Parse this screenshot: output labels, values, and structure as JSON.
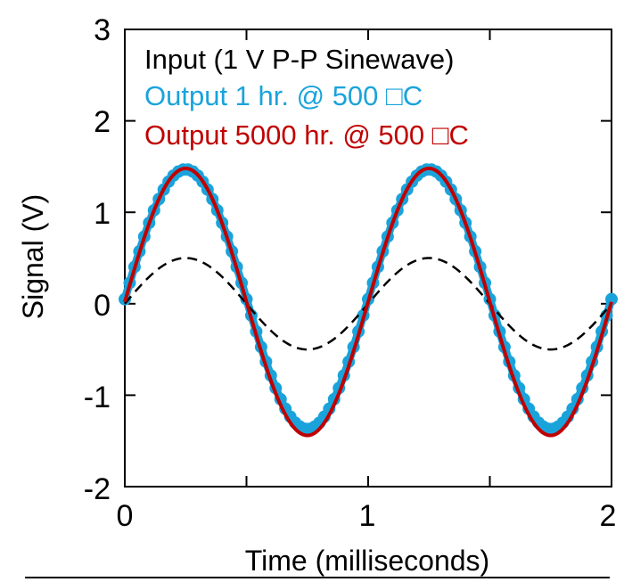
{
  "chart_data": {
    "type": "line",
    "title": "",
    "xlabel": "Time (milliseconds)",
    "ylabel": "Signal (V)",
    "xlim": [
      0,
      2
    ],
    "ylim": [
      -2,
      3
    ],
    "x_ticks": [
      "0",
      "1",
      "2"
    ],
    "y_ticks": [
      "-2",
      "-1",
      "0",
      "1",
      "2",
      "3"
    ],
    "grid": false,
    "legend_placement": "top-left",
    "series": [
      {
        "name": "Input (1 V P-P Sinewave)",
        "color": "#000000",
        "style": "dashed",
        "frequency_khz": 1,
        "amplitude_v": 0.5,
        "offset_v": 0.0,
        "x": [
          0,
          0.25,
          0.5,
          0.75,
          1.0,
          1.25,
          1.5,
          1.75,
          2.0
        ],
        "y": [
          0.0,
          0.5,
          0.0,
          -0.5,
          0.0,
          0.5,
          0.0,
          -0.5,
          0.0
        ]
      },
      {
        "name": "Output 1 hr. @ 500 □C",
        "color": "#1aa3db",
        "style": "markers",
        "frequency_khz": 1,
        "amplitude_v": 1.42,
        "offset_v": 0.05,
        "x": [
          0,
          0.25,
          0.5,
          0.75,
          1.0,
          1.25,
          1.5,
          1.75,
          2.0
        ],
        "y": [
          0.1,
          1.47,
          0.05,
          -1.37,
          0.05,
          1.47,
          0.05,
          -1.37,
          0.05
        ]
      },
      {
        "name": "Output 5000 hr. @ 500 □C",
        "color": "#c00000",
        "style": "solid",
        "frequency_khz": 1,
        "amplitude_v": 1.46,
        "offset_v": 0.02,
        "x": [
          0,
          0.25,
          0.5,
          0.75,
          1.0,
          1.25,
          1.5,
          1.75,
          2.0
        ],
        "y": [
          0.1,
          1.48,
          0.02,
          -1.44,
          0.02,
          1.48,
          0.02,
          -1.44,
          0.02
        ]
      }
    ]
  }
}
